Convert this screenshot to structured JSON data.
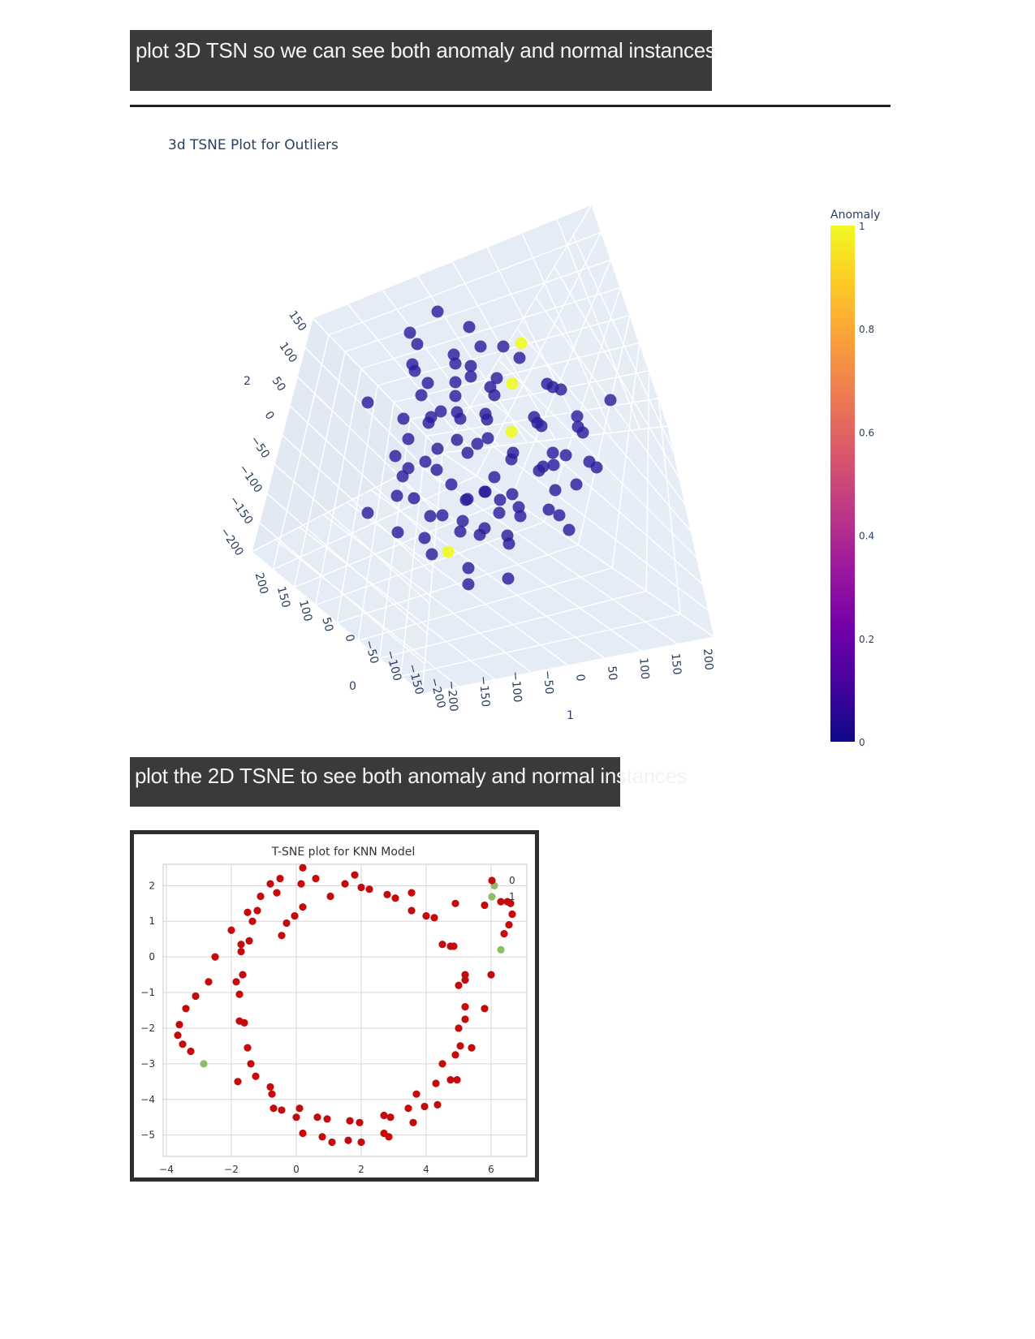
{
  "section1": {
    "heading": "plot 3D TSN so we can see both anomaly and normal instances"
  },
  "section2": {
    "heading": "plot the 2D TSNE to see both anomaly and normal instances"
  },
  "chart_data": [
    {
      "type": "scatter",
      "title": "3d TSNE Plot for Outliers",
      "projection": "3d",
      "axis_labels": {
        "x": "1",
        "y": "0",
        "z": "2"
      },
      "x_ticks": [
        "−200",
        "−150",
        "−100",
        "−50",
        "0",
        "50",
        "100",
        "150",
        "200"
      ],
      "y_ticks": [
        "200",
        "150",
        "100",
        "50",
        "0",
        "−50",
        "−100",
        "−150",
        "−200"
      ],
      "z_ticks": [
        "150",
        "100",
        "50",
        "0",
        "−50",
        "−100",
        "−150",
        "−200"
      ],
      "colorbar": {
        "title": "Anomaly",
        "ticks": [
          "1",
          "0.8",
          "0.6",
          "0.4",
          "0.2",
          "0"
        ],
        "colors": [
          "#0d0887",
          "#46039f",
          "#7201a8",
          "#9c179e",
          "#bd3786",
          "#d8576b",
          "#ed7953",
          "#fb9f3a",
          "#fdca26",
          "#f0f921"
        ]
      },
      "marker_colors": {
        "normal": "#2a1e9c",
        "anomaly": "#f0f921"
      },
      "background": "#e5ecf6",
      "points_screen_order": [
        [
          539,
          384,
          0
        ],
        [
          505,
          410,
          0
        ],
        [
          578,
          403,
          0
        ],
        [
          514,
          424,
          0
        ],
        [
          559,
          437,
          0
        ],
        [
          592,
          427,
          0
        ],
        [
          620,
          427,
          0
        ],
        [
          642,
          423,
          1
        ],
        [
          640,
          441,
          0
        ],
        [
          508,
          449,
          0
        ],
        [
          511,
          457,
          0
        ],
        [
          561,
          448,
          0
        ],
        [
          580,
          451,
          0
        ],
        [
          580,
          464,
          0
        ],
        [
          527,
          472,
          0
        ],
        [
          561,
          471,
          0
        ],
        [
          612,
          466,
          0
        ],
        [
          631,
          473,
          1
        ],
        [
          604,
          477,
          0
        ],
        [
          609,
          487,
          0
        ],
        [
          674,
          473,
          0
        ],
        [
          681,
          477,
          0
        ],
        [
          691,
          480,
          0
        ],
        [
          453,
          496,
          0
        ],
        [
          519,
          487,
          0
        ],
        [
          561,
          488,
          0
        ],
        [
          752,
          493,
          0
        ],
        [
          497,
          516,
          0
        ],
        [
          531,
          514,
          0
        ],
        [
          543,
          507,
          0
        ],
        [
          528,
          521,
          0
        ],
        [
          563,
          508,
          0
        ],
        [
          567,
          516,
          0
        ],
        [
          598,
          510,
          0
        ],
        [
          600,
          517,
          0
        ],
        [
          658,
          514,
          0
        ],
        [
          662,
          521,
          0
        ],
        [
          667,
          525,
          0
        ],
        [
          711,
          513,
          0
        ],
        [
          712,
          526,
          0
        ],
        [
          718,
          533,
          0
        ],
        [
          503,
          541,
          0
        ],
        [
          563,
          542,
          0
        ],
        [
          588,
          547,
          0
        ],
        [
          601,
          540,
          0
        ],
        [
          630,
          532,
          1
        ],
        [
          539,
          553,
          0
        ],
        [
          576,
          558,
          0
        ],
        [
          632,
          558,
          0
        ],
        [
          630,
          566,
          0
        ],
        [
          487,
          562,
          0
        ],
        [
          503,
          577,
          0
        ],
        [
          496,
          587,
          0
        ],
        [
          524,
          569,
          0
        ],
        [
          538,
          579,
          0
        ],
        [
          681,
          558,
          0
        ],
        [
          697,
          561,
          0
        ],
        [
          669,
          575,
          0
        ],
        [
          664,
          580,
          0
        ],
        [
          682,
          573,
          0
        ],
        [
          726,
          569,
          0
        ],
        [
          735,
          576,
          0
        ],
        [
          609,
          588,
          0
        ],
        [
          556,
          597,
          0
        ],
        [
          489,
          611,
          0
        ],
        [
          510,
          614,
          0
        ],
        [
          574,
          616,
          0
        ],
        [
          576,
          615,
          0
        ],
        [
          597,
          606,
          0
        ],
        [
          598,
          606,
          0
        ],
        [
          616,
          616,
          0
        ],
        [
          631,
          609,
          0
        ],
        [
          684,
          604,
          0
        ],
        [
          710,
          597,
          0
        ],
        [
          453,
          632,
          0
        ],
        [
          530,
          636,
          0
        ],
        [
          545,
          635,
          0
        ],
        [
          570,
          642,
          0
        ],
        [
          615,
          632,
          0
        ],
        [
          639,
          625,
          0
        ],
        [
          641,
          636,
          0
        ],
        [
          676,
          628,
          0
        ],
        [
          689,
          635,
          0
        ],
        [
          490,
          656,
          0
        ],
        [
          567,
          655,
          0
        ],
        [
          591,
          659,
          0
        ],
        [
          597,
          651,
          0
        ],
        [
          625,
          660,
          0
        ],
        [
          627,
          670,
          0
        ],
        [
          701,
          653,
          0
        ],
        [
          523,
          663,
          0
        ],
        [
          532,
          683,
          0
        ],
        [
          552,
          680,
          1
        ],
        [
          577,
          700,
          0
        ],
        [
          577,
          720,
          0
        ],
        [
          626,
          713,
          0
        ]
      ]
    },
    {
      "type": "scatter",
      "title": "T-SNE plot for KNN Model",
      "xlabel": "",
      "ylabel": "",
      "xlim": [
        -4.1,
        7.1
      ],
      "ylim": [
        -5.6,
        2.6
      ],
      "x_ticks": [
        "−4",
        "−2",
        "0",
        "2",
        "4",
        "6"
      ],
      "y_ticks": [
        "2",
        "1",
        "0",
        "−1",
        "−2",
        "−3",
        "−4",
        "−5"
      ],
      "grid": true,
      "legend": {
        "position": "top-right",
        "entries": [
          "0",
          "1"
        ]
      },
      "colors": {
        "0": "#c40a0a",
        "1": "#8ebd68"
      },
      "series": [
        {
          "name": "0",
          "points": [
            [
              0.2,
              2.5
            ],
            [
              -0.5,
              2.2
            ],
            [
              0.6,
              2.2
            ],
            [
              1.8,
              2.3
            ],
            [
              -0.8,
              2.05
            ],
            [
              0.15,
              2.05
            ],
            [
              1.5,
              2.05
            ],
            [
              2.0,
              1.95
            ],
            [
              2.25,
              1.9
            ],
            [
              -1.1,
              1.7
            ],
            [
              -0.6,
              1.8
            ],
            [
              1.05,
              1.7
            ],
            [
              2.8,
              1.75
            ],
            [
              3.05,
              1.65
            ],
            [
              3.55,
              1.8
            ],
            [
              -1.5,
              1.25
            ],
            [
              -1.2,
              1.3
            ],
            [
              0.2,
              1.4
            ],
            [
              3.55,
              1.3
            ],
            [
              4.0,
              1.15
            ],
            [
              4.25,
              1.1
            ],
            [
              4.9,
              1.5
            ],
            [
              5.8,
              1.45
            ],
            [
              6.3,
              1.55
            ],
            [
              6.5,
              1.55
            ],
            [
              6.6,
              1.5
            ],
            [
              6.65,
              1.2
            ],
            [
              -1.35,
              1.0
            ],
            [
              -0.3,
              0.95
            ],
            [
              -0.05,
              1.15
            ],
            [
              -2.0,
              0.75
            ],
            [
              -0.45,
              0.6
            ],
            [
              -1.45,
              0.45
            ],
            [
              -1.7,
              0.35
            ],
            [
              -1.7,
              0.15
            ],
            [
              4.5,
              0.35
            ],
            [
              4.75,
              0.3
            ],
            [
              4.85,
              0.3
            ],
            [
              6.4,
              0.65
            ],
            [
              6.55,
              0.9
            ],
            [
              -2.5,
              0.0
            ],
            [
              -2.7,
              -0.7
            ],
            [
              -1.85,
              -0.7
            ],
            [
              -1.65,
              -0.5
            ],
            [
              5.2,
              -0.5
            ],
            [
              5.2,
              -0.65
            ],
            [
              5.0,
              -0.8
            ],
            [
              6.0,
              -0.5
            ],
            [
              -3.1,
              -1.1
            ],
            [
              -1.75,
              -1.05
            ],
            [
              -3.4,
              -1.45
            ],
            [
              5.2,
              -1.4
            ],
            [
              5.8,
              -1.45
            ],
            [
              -3.6,
              -1.9
            ],
            [
              -1.75,
              -1.8
            ],
            [
              -1.6,
              -1.85
            ],
            [
              5.2,
              -1.75
            ],
            [
              5.0,
              -2.0
            ],
            [
              -3.65,
              -2.2
            ],
            [
              -3.5,
              -2.45
            ],
            [
              -3.25,
              -2.65
            ],
            [
              -1.5,
              -2.55
            ],
            [
              5.05,
              -2.5
            ],
            [
              5.4,
              -2.55
            ],
            [
              -1.4,
              -3.0
            ],
            [
              4.9,
              -2.75
            ],
            [
              4.5,
              -3.0
            ],
            [
              -1.8,
              -3.5
            ],
            [
              -1.25,
              -3.35
            ],
            [
              -0.8,
              -3.65
            ],
            [
              -0.75,
              -3.85
            ],
            [
              4.3,
              -3.55
            ],
            [
              4.75,
              -3.45
            ],
            [
              4.95,
              -3.45
            ],
            [
              3.7,
              -3.85
            ],
            [
              -0.7,
              -4.25
            ],
            [
              -0.45,
              -4.3
            ],
            [
              0.1,
              -4.25
            ],
            [
              3.45,
              -4.25
            ],
            [
              3.95,
              -4.2
            ],
            [
              4.35,
              -4.15
            ],
            [
              0.0,
              -4.5
            ],
            [
              0.65,
              -4.5
            ],
            [
              0.95,
              -4.55
            ],
            [
              1.65,
              -4.6
            ],
            [
              1.95,
              -4.65
            ],
            [
              2.7,
              -4.45
            ],
            [
              2.9,
              -4.5
            ],
            [
              3.6,
              -4.65
            ],
            [
              0.2,
              -4.95
            ],
            [
              0.8,
              -5.05
            ],
            [
              2.7,
              -4.95
            ],
            [
              1.1,
              -5.2
            ],
            [
              1.6,
              -5.15
            ],
            [
              2.0,
              -5.2
            ],
            [
              2.85,
              -5.05
            ]
          ]
        },
        {
          "name": "1",
          "points": [
            [
              6.1,
              2.0
            ],
            [
              6.3,
              0.2
            ],
            [
              -2.85,
              -3.0
            ]
          ]
        }
      ]
    }
  ]
}
